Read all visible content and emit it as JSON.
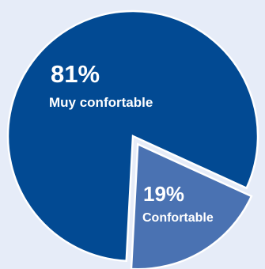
{
  "chart_data": {
    "type": "pie",
    "slices": [
      {
        "label": "Muy confortable",
        "value": 81,
        "value_label": "81%",
        "color": "#024a93"
      },
      {
        "label": "Confortable",
        "value": 19,
        "value_label": "19%",
        "color": "#4a72b2"
      }
    ],
    "exploded_slice": "Confortable",
    "legend": "none"
  },
  "background": "#e6ecf8"
}
